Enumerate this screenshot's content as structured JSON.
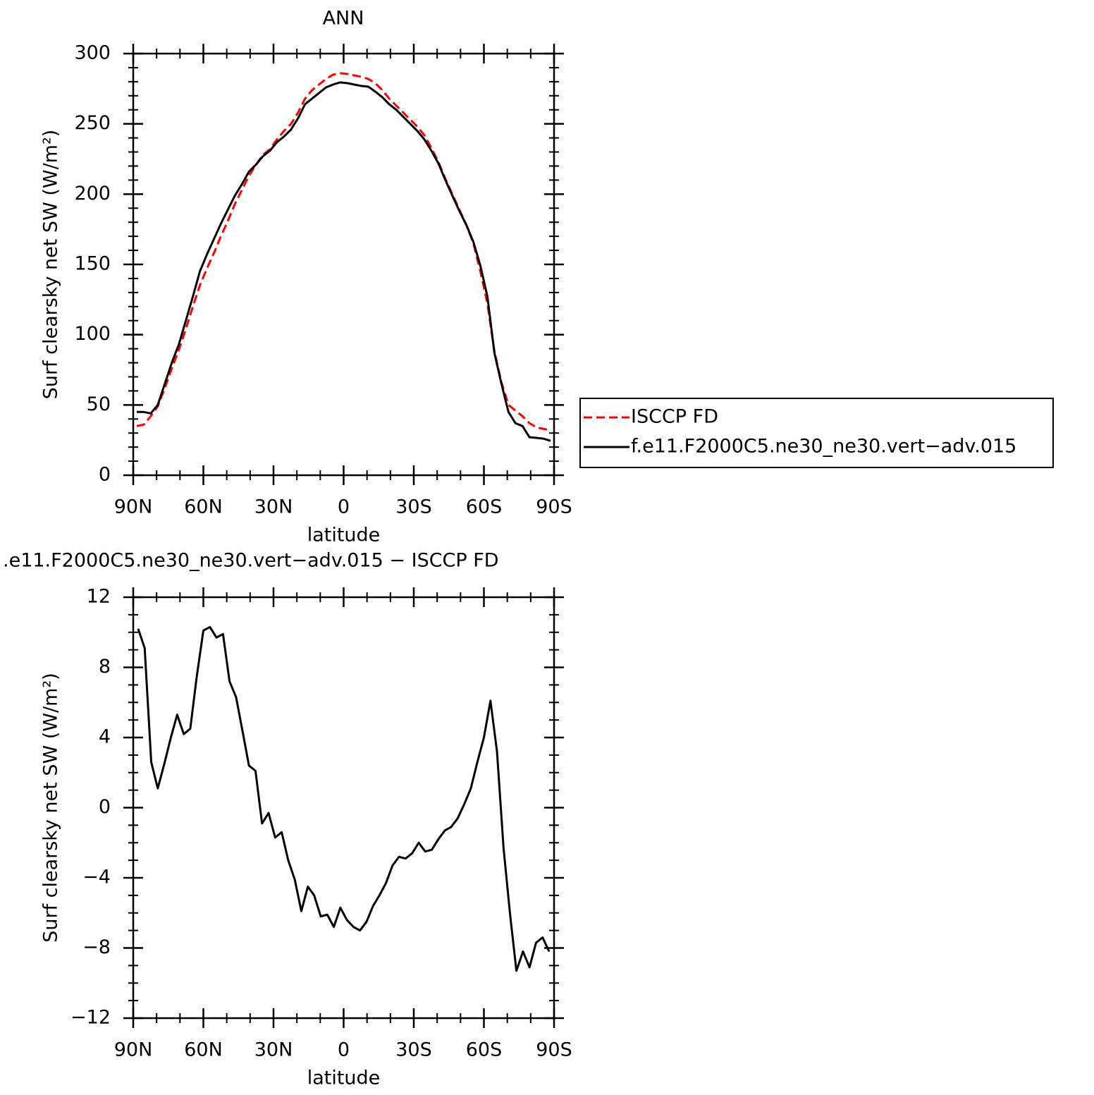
{
  "chart_data": [
    {
      "type": "line",
      "title": "ANN",
      "xlabel": "latitude",
      "ylabel": "Surf clearsky net SW (W/m²)",
      "x": [
        88.5,
        85.5,
        82.5,
        79.5,
        76.5,
        73.5,
        70.5,
        67.5,
        64.5,
        61.5,
        58.5,
        55.5,
        52.5,
        49.5,
        46.5,
        43.5,
        40.5,
        37.5,
        34.5,
        31.5,
        28.5,
        25.5,
        22.5,
        19.5,
        16.5,
        13.5,
        10.5,
        7.5,
        4.5,
        1.5,
        -1.5,
        -4.5,
        -7.5,
        -10.5,
        -13.5,
        -16.5,
        -19.5,
        -22.5,
        -25.5,
        -28.5,
        -31.5,
        -34.5,
        -37.5,
        -40.5,
        -43.5,
        -46.5,
        -49.5,
        -52.5,
        -55.5,
        -58.5,
        -61.5,
        -64.5,
        -67.5,
        -70.5,
        -73.5,
        -76.5,
        -79.5,
        -82.5,
        -85.5,
        -88.5
      ],
      "xlim": [
        90,
        -90
      ],
      "xticks": [
        {
          "value": 90,
          "label": "90N"
        },
        {
          "value": 60,
          "label": "60N"
        },
        {
          "value": 30,
          "label": "30N"
        },
        0,
        {
          "value": -30,
          "label": "30S"
        },
        {
          "value": -60,
          "label": "60S"
        },
        {
          "value": -90,
          "label": "90S"
        }
      ],
      "ylim": [
        0,
        300
      ],
      "yticks": [
        0,
        50,
        100,
        150,
        200,
        250,
        300
      ],
      "legend": "right",
      "series": [
        {
          "name": "ISCCP FD",
          "color": "#ff0000",
          "style": "dashed",
          "values": [
            35,
            36,
            42,
            49,
            62,
            76,
            89,
            104,
            120,
            135,
            147,
            158,
            170,
            181,
            193,
            203,
            213,
            221,
            228,
            232,
            239,
            245,
            250,
            258,
            268,
            274,
            278,
            282,
            285,
            286,
            285.5,
            284.5,
            283.5,
            282,
            279,
            274,
            268,
            263,
            258,
            253,
            248,
            242,
            233,
            223,
            211,
            200,
            189,
            178,
            165,
            145,
            122,
            88,
            66,
            50,
            46,
            42,
            37,
            34,
            33,
            32
          ]
        },
        {
          "name": "f.e11.F2000C5.ne30_ne30.vert−adv.015",
          "color": "#000000",
          "style": "solid",
          "values": [
            45,
            45,
            44,
            50,
            65,
            80,
            93,
            110,
            127,
            145,
            157,
            168,
            179,
            189,
            199,
            207,
            216,
            221,
            227,
            231,
            237,
            241,
            246,
            254,
            264,
            268,
            272,
            276,
            278,
            279.5,
            279,
            278,
            277,
            276.5,
            273,
            269,
            264,
            260,
            255,
            250,
            245,
            239,
            231,
            222,
            210,
            199,
            188,
            178,
            166,
            149,
            127,
            87,
            65,
            45,
            37,
            35,
            27,
            26.6,
            26,
            24.5
          ]
        }
      ]
    },
    {
      "type": "line",
      "title": ".e11.F2000C5.ne30_ne30.vert−adv.015 − ISCCP FD",
      "xlabel": "latitude",
      "ylabel": "Surf clearsky net SW (W/m²)",
      "x": [
        87.9,
        85.1,
        82.3,
        79.5,
        76.7,
        73.9,
        71.2,
        68.4,
        65.6,
        62.8,
        60.0,
        57.2,
        54.4,
        51.6,
        48.8,
        46.0,
        43.3,
        40.5,
        37.7,
        34.9,
        32.1,
        29.3,
        26.5,
        23.7,
        20.9,
        18.1,
        15.3,
        12.6,
        9.8,
        7.0,
        4.2,
        1.4,
        -1.4,
        -4.2,
        -7.0,
        -9.8,
        -12.6,
        -15.3,
        -18.1,
        -20.9,
        -23.7,
        -26.5,
        -29.3,
        -32.1,
        -34.9,
        -37.7,
        -40.5,
        -43.3,
        -46.0,
        -48.8,
        -51.6,
        -54.4,
        -57.2,
        -60.0,
        -62.8,
        -65.6,
        -68.4,
        -71.2,
        -73.9,
        -76.7,
        -79.5,
        -82.3,
        -85.1,
        -87.9
      ],
      "xlim": [
        90,
        -90
      ],
      "xticks": [
        {
          "value": 90,
          "label": "90N"
        },
        {
          "value": 60,
          "label": "60N"
        },
        {
          "value": 30,
          "label": "30N"
        },
        0,
        {
          "value": -30,
          "label": "30S"
        },
        {
          "value": -60,
          "label": "60S"
        },
        {
          "value": -90,
          "label": "90S"
        }
      ],
      "ylim": [
        -12,
        12
      ],
      "yticks": [
        {
          "value": -12,
          "label": "−12"
        },
        {
          "value": -8,
          "label": "−8"
        },
        {
          "value": -4,
          "label": "−4"
        },
        0,
        4,
        8,
        12
      ],
      "series": [
        {
          "color": "#000000",
          "style": "solid",
          "values": [
            10.2,
            9.1,
            2.6,
            1.1,
            2.5,
            4.0,
            5.3,
            4.2,
            4.5,
            7.5,
            10.1,
            10.3,
            9.7,
            9.9,
            7.2,
            6.3,
            4.4,
            2.4,
            2.1,
            -0.9,
            -0.3,
            -1.7,
            -1.4,
            -3.0,
            -4.1,
            -5.9,
            -4.5,
            -5.0,
            -6.2,
            -6.1,
            -6.8,
            -5.7,
            -6.4,
            -6.8,
            -7.0,
            -6.5,
            -5.6,
            -5.0,
            -4.3,
            -3.3,
            -2.8,
            -2.9,
            -2.6,
            -2.0,
            -2.5,
            -2.4,
            -1.8,
            -1.3,
            -1.1,
            -0.6,
            0.2,
            1.1,
            2.6,
            4.0,
            6.1,
            3.2,
            -2.3,
            -6.1,
            -9.3,
            -8.2,
            -9.1,
            -7.7,
            -7.4,
            -8.2
          ]
        }
      ]
    }
  ]
}
